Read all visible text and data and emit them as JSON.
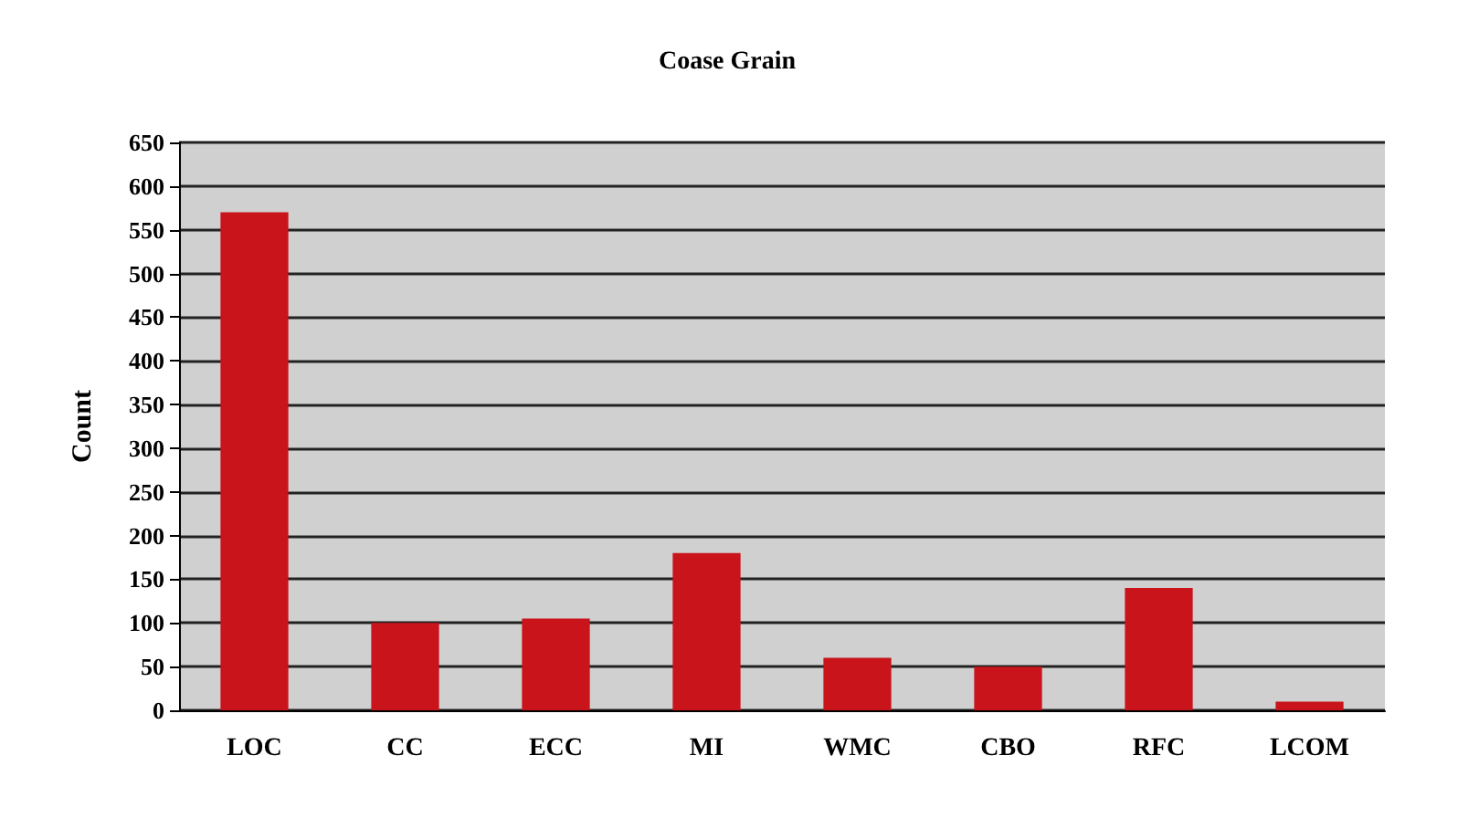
{
  "chart_data": {
    "type": "bar",
    "title": "Coase Grain",
    "ylabel": "Count",
    "categories": [
      "LOC",
      "CC",
      "ECC",
      "MI",
      "WMC",
      "CBO",
      "RFC",
      "LCOM"
    ],
    "values": [
      570,
      100,
      105,
      180,
      60,
      50,
      140,
      10
    ],
    "color": "#c8141a",
    "ylim": [
      0,
      650
    ],
    "yticks": [
      0,
      50,
      100,
      150,
      200,
      250,
      300,
      350,
      400,
      450,
      500,
      550,
      600,
      650
    ],
    "grid": "y"
  }
}
